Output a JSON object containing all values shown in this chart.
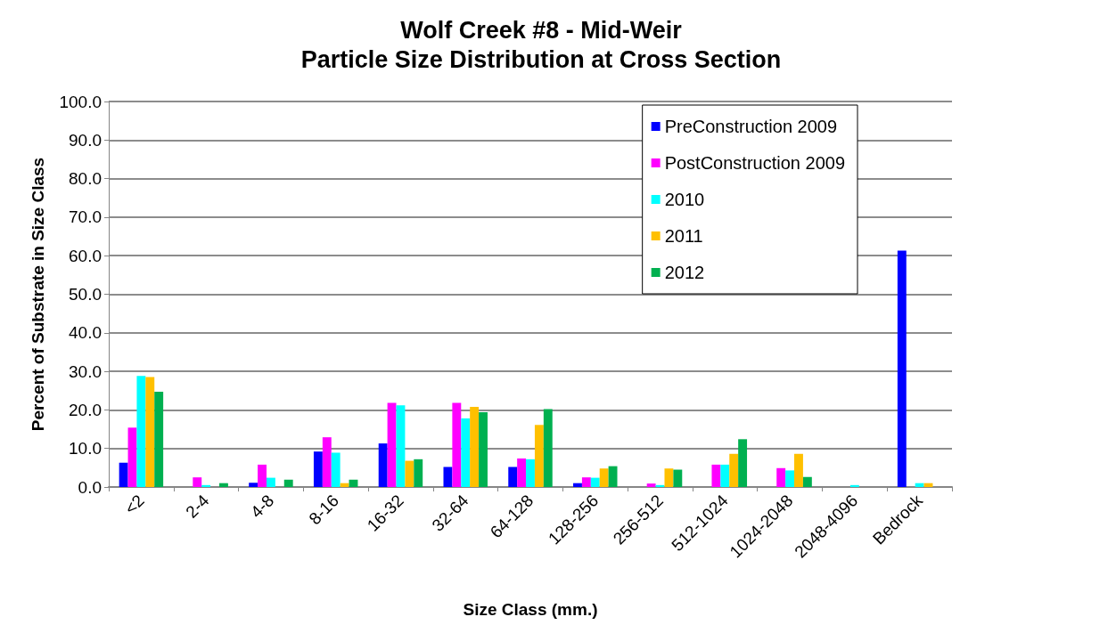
{
  "chart_data": {
    "type": "bar",
    "title": "Wolf Creek #8 - Mid-Weir\nParticle Size Distribution at Cross Section",
    "xlabel": "Size Class (mm.)",
    "ylabel": "Percent of Substrate in Size Class",
    "categories": [
      "<2",
      "2-4",
      "4-8",
      "8-16",
      "16-32",
      "32-64",
      "64-128",
      "128-256",
      "256-512",
      "512-1024",
      "1024-2048",
      "2048-4096",
      "Bedrock"
    ],
    "series": [
      {
        "name": "PreConstruction 2009",
        "color": "#0000ff",
        "values": [
          6.3,
          0,
          1.1,
          9.2,
          11.3,
          5.2,
          5.2,
          1.0,
          0,
          0,
          0,
          0,
          61.3
        ]
      },
      {
        "name": "PostConstruction 2009",
        "color": "#ff00ff",
        "values": [
          15.4,
          2.5,
          5.8,
          12.9,
          21.8,
          21.8,
          7.4,
          2.5,
          0.9,
          5.8,
          4.9,
          0,
          0
        ]
      },
      {
        "name": "2010",
        "color": "#00ffff",
        "values": [
          28.8,
          0.5,
          2.4,
          8.9,
          21.2,
          17.8,
          7.2,
          2.4,
          0.5,
          5.8,
          4.3,
          0.5,
          1.0
        ]
      },
      {
        "name": "2011",
        "color": "#ffc000",
        "values": [
          28.5,
          0,
          0,
          1.0,
          6.8,
          20.8,
          16.1,
          4.8,
          4.8,
          8.6,
          8.6,
          0,
          1.0
        ]
      },
      {
        "name": "2012",
        "color": "#00b050",
        "values": [
          24.7,
          1.0,
          1.9,
          1.9,
          7.2,
          19.4,
          20.2,
          5.4,
          4.5,
          12.4,
          2.6,
          0,
          0
        ]
      }
    ],
    "ylim": [
      0,
      100
    ],
    "yticks": [
      {
        "value": 0,
        "label": "0.0"
      },
      {
        "value": 10,
        "label": "10.0"
      },
      {
        "value": 20,
        "label": "20.0"
      },
      {
        "value": 30,
        "label": "30.0"
      },
      {
        "value": 40,
        "label": "40.0"
      },
      {
        "value": 50,
        "label": "50.0"
      },
      {
        "value": 60,
        "label": "60.0"
      },
      {
        "value": 70,
        "label": "70.0"
      },
      {
        "value": 80,
        "label": "80.0"
      },
      {
        "value": 90,
        "label": "90.0"
      },
      {
        "value": 100,
        "label": "100.0"
      }
    ],
    "grid": "y",
    "legend": "top right"
  }
}
